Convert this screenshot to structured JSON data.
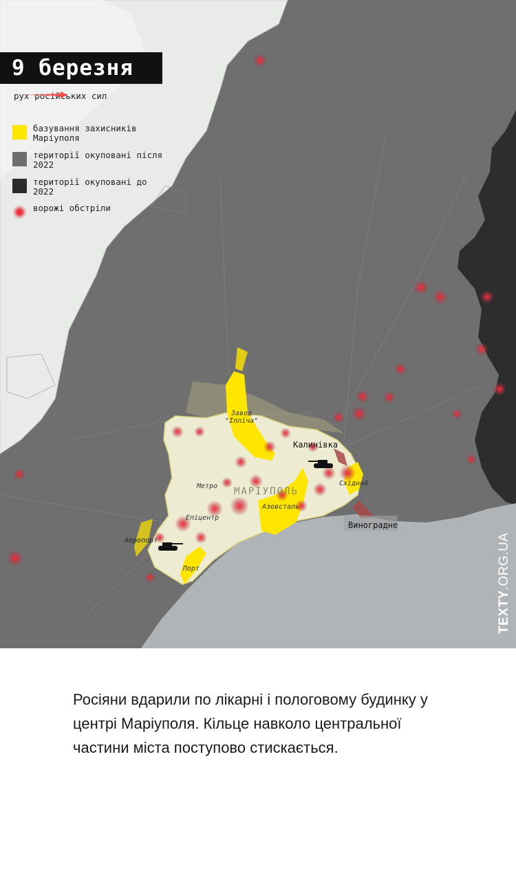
{
  "date": "9 березня",
  "legend": {
    "movement": "рух російських сил",
    "items": [
      {
        "label": "базування захисників Маріуполя",
        "color": "#ffe600"
      },
      {
        "label": "території окуповані після 2022",
        "color": "#6e6e6e"
      },
      {
        "label": "території окуповані до 2022",
        "color": "#2b2b2b"
      },
      {
        "label": "ворожі обстріли",
        "color": "#e8333f"
      }
    ]
  },
  "map": {
    "labels": {
      "kalynivka": "Калинівка",
      "vynohradne": "Виноградне",
      "mariupol": "МАРІУПОЛЬ",
      "zavod": "Завод",
      "illicha": "\"Ілліча\"",
      "azovstal": "Азовсталь",
      "skhidnyi": "Східний",
      "metro": "Метро",
      "epitsentr": "Епіцентр",
      "port": "Порт",
      "airport": "Аеропорт"
    }
  },
  "credit": {
    "bold": "TEXTY",
    "rest": ".ORG.UA"
  },
  "caption": "Росіяни вдарили по лікарні і пологовому будинку у центрі Маріуполя. Кільце навколо центральної частини міста поступово стискається."
}
